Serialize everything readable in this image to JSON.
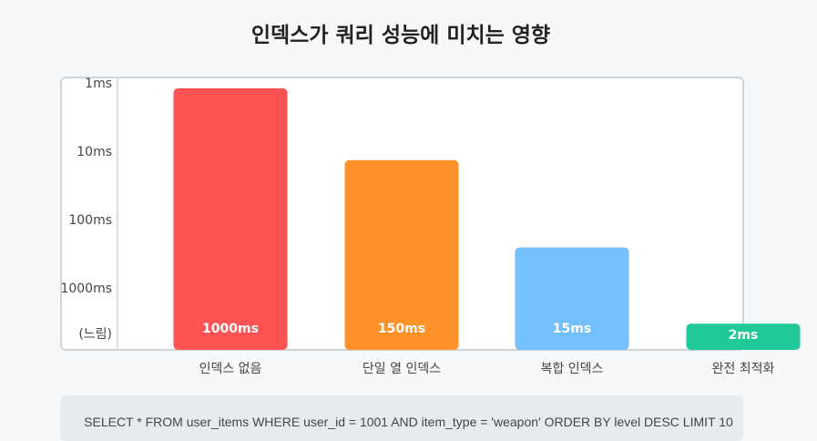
{
  "chart_data": {
    "type": "bar",
    "title": "인덱스가 쿼리 성능에 미치는 영향",
    "y_scale": "log",
    "y_axis_inverted": true,
    "y_ticks": [
      "1ms",
      "10ms",
      "100ms",
      "1000ms",
      "(느림)"
    ],
    "categories": [
      "인덱스 없음",
      "단일 열 인덱스",
      "복합 인덱스",
      "완전 최적화"
    ],
    "values": [
      1000,
      150,
      15,
      2
    ],
    "value_labels": [
      "1000ms",
      "150ms",
      "15ms",
      "2ms"
    ],
    "unit": "ms",
    "grid": false,
    "colors": [
      "#ff5252",
      "#ff922b",
      "#74c0fc",
      "#20c997"
    ]
  },
  "query": {
    "text": "SELECT * FROM user_items WHERE user_id = 1001 AND item_type = 'weapon' ORDER BY level DESC LIMIT 10"
  }
}
